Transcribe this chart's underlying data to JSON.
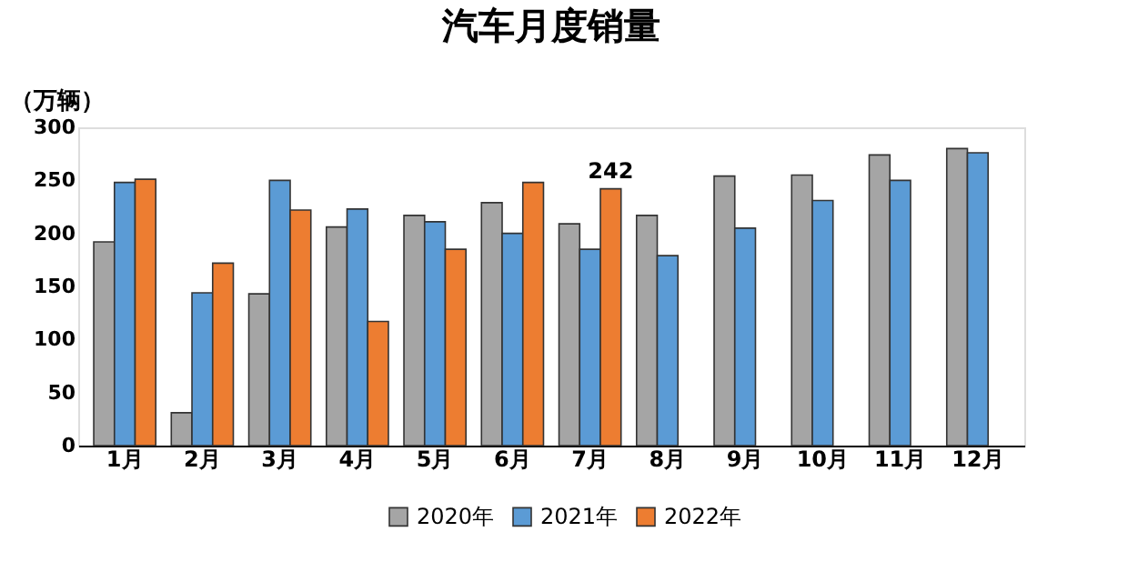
{
  "chart_data": {
    "type": "bar",
    "title": "汽车月度销量",
    "ylabel": "（万辆）",
    "categories": [
      "1月",
      "2月",
      "3月",
      "4月",
      "5月",
      "6月",
      "7月",
      "8月",
      "9月",
      "10月",
      "11月",
      "12月"
    ],
    "series": [
      {
        "name": "2020年",
        "color": "#a5a5a5",
        "values": [
          192,
          31,
          143,
          206,
          217,
          229,
          209,
          217,
          254,
          255,
          274,
          280
        ]
      },
      {
        "name": "2021年",
        "color": "#5b9bd5",
        "values": [
          248,
          144,
          250,
          223,
          211,
          200,
          185,
          179,
          205,
          231,
          250,
          276
        ]
      },
      {
        "name": "2022年",
        "color": "#ed7d31",
        "values": [
          251,
          172,
          222,
          117,
          185,
          248,
          242,
          null,
          null,
          null,
          null,
          null
        ],
        "value_labels": [
          null,
          null,
          null,
          null,
          null,
          null,
          "242",
          null,
          null,
          null,
          null,
          null
        ]
      }
    ],
    "ylim": [
      0,
      300
    ],
    "yticks": [
      0,
      50,
      100,
      150,
      200,
      250,
      300
    ],
    "grid": false,
    "legend": "bottom"
  }
}
